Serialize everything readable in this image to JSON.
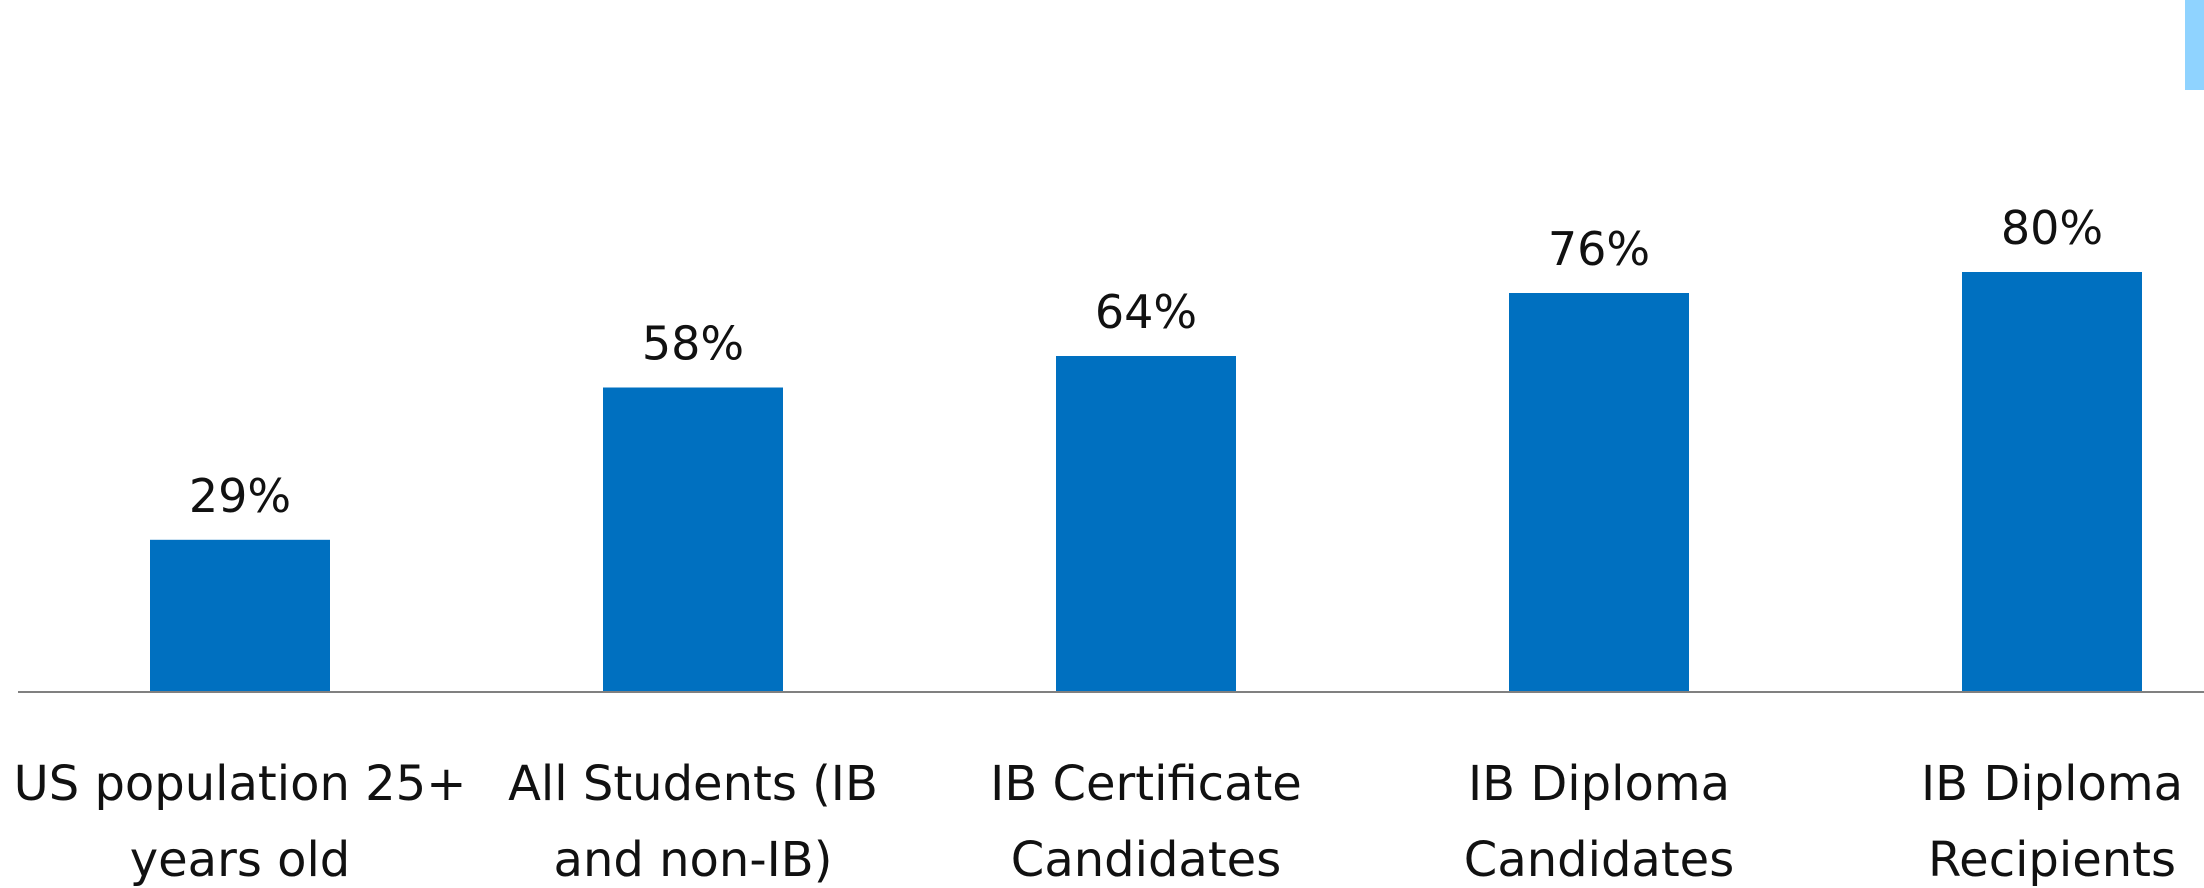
{
  "chart_data": {
    "type": "bar",
    "categories": [
      [
        "US population  25+",
        "years old"
      ],
      [
        "All Students (IB",
        "and non-IB)"
      ],
      [
        "IB Certificate",
        "Candidates"
      ],
      [
        "IB Diploma",
        "Candidates"
      ],
      [
        "IB Diploma",
        "Recipients"
      ]
    ],
    "values": [
      29,
      58,
      64,
      76,
      80
    ],
    "value_labels": [
      "29%",
      "58%",
      "64%",
      "76%",
      "80%"
    ],
    "title": "",
    "xlabel": "",
    "ylabel": "",
    "ylim": [
      0,
      100
    ],
    "grid": false,
    "legend": "none",
    "colors": {
      "bar": "#0070C0",
      "axis": "#808080",
      "accent_right": "#8FD3FF"
    }
  }
}
